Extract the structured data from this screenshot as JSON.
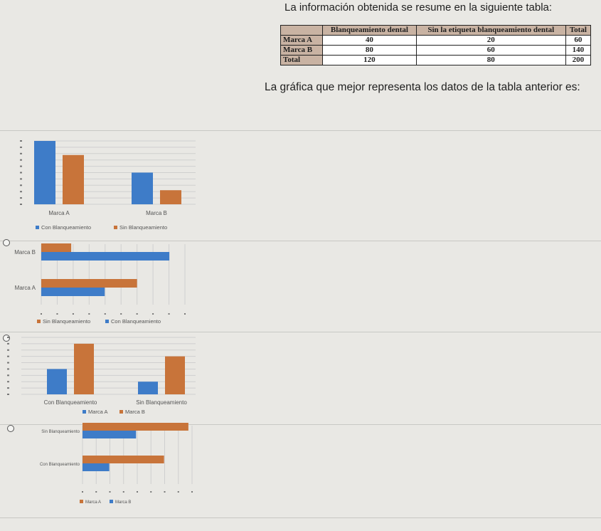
{
  "question": {
    "intro": "La información obtenida se resume en la siguiente tabla:",
    "prompt": "La gráfica que mejor representa los datos de la tabla anterior es:"
  },
  "table": {
    "headers": [
      "",
      "Blanqueamiento dental",
      "Sin la etiqueta blanqueamiento dental",
      "Total"
    ],
    "rows": [
      [
        "Marca A",
        "40",
        "20",
        "60"
      ],
      [
        "Marca B",
        "80",
        "60",
        "140"
      ],
      [
        "Total",
        "120",
        "80",
        "200"
      ]
    ]
  },
  "colors": {
    "blue": "#3e7cc8",
    "orange": "#c8743a",
    "grid": "#cfcfcf",
    "axis": "#777777"
  },
  "chart_data": [
    {
      "type": "bar",
      "categories": [
        "Marca A",
        "Marca B"
      ],
      "series": [
        {
          "name": "Con Blanqueamiento",
          "values": [
            90,
            45
          ]
        },
        {
          "name": "Sin Blanqueamiento",
          "values": [
            70,
            20
          ]
        }
      ],
      "ylim": [
        0,
        90
      ],
      "legend": "bottom"
    },
    {
      "type": "bar",
      "orientation": "horizontal",
      "categories": [
        "Marca A",
        "Marca B"
      ],
      "series": [
        {
          "name": "Sin Blanqueamiento",
          "values": [
            80,
            25
          ]
        },
        {
          "name": "Con Blanqueamiento",
          "values": [
            53,
            107
          ]
        }
      ],
      "xlim": [
        0,
        120
      ],
      "legend": "bottom"
    },
    {
      "type": "bar",
      "categories": [
        "Con Blanqueamiento",
        "Sin Blanqueamiento"
      ],
      "series": [
        {
          "name": "Marca A",
          "values": [
            40,
            20
          ]
        },
        {
          "name": "Marca B",
          "values": [
            80,
            60
          ]
        }
      ],
      "ylim": [
        0,
        90
      ],
      "legend": "bottom"
    },
    {
      "type": "bar",
      "orientation": "horizontal",
      "categories": [
        "Con Blanqueamiento",
        "Sin Blanqueamiento"
      ],
      "series": [
        {
          "name": "Marca A",
          "values": [
            67,
            87
          ]
        },
        {
          "name": "Marca B",
          "values": [
            22,
            44
          ]
        }
      ],
      "xlim": [
        0,
        90
      ],
      "legend": "bottom"
    }
  ]
}
